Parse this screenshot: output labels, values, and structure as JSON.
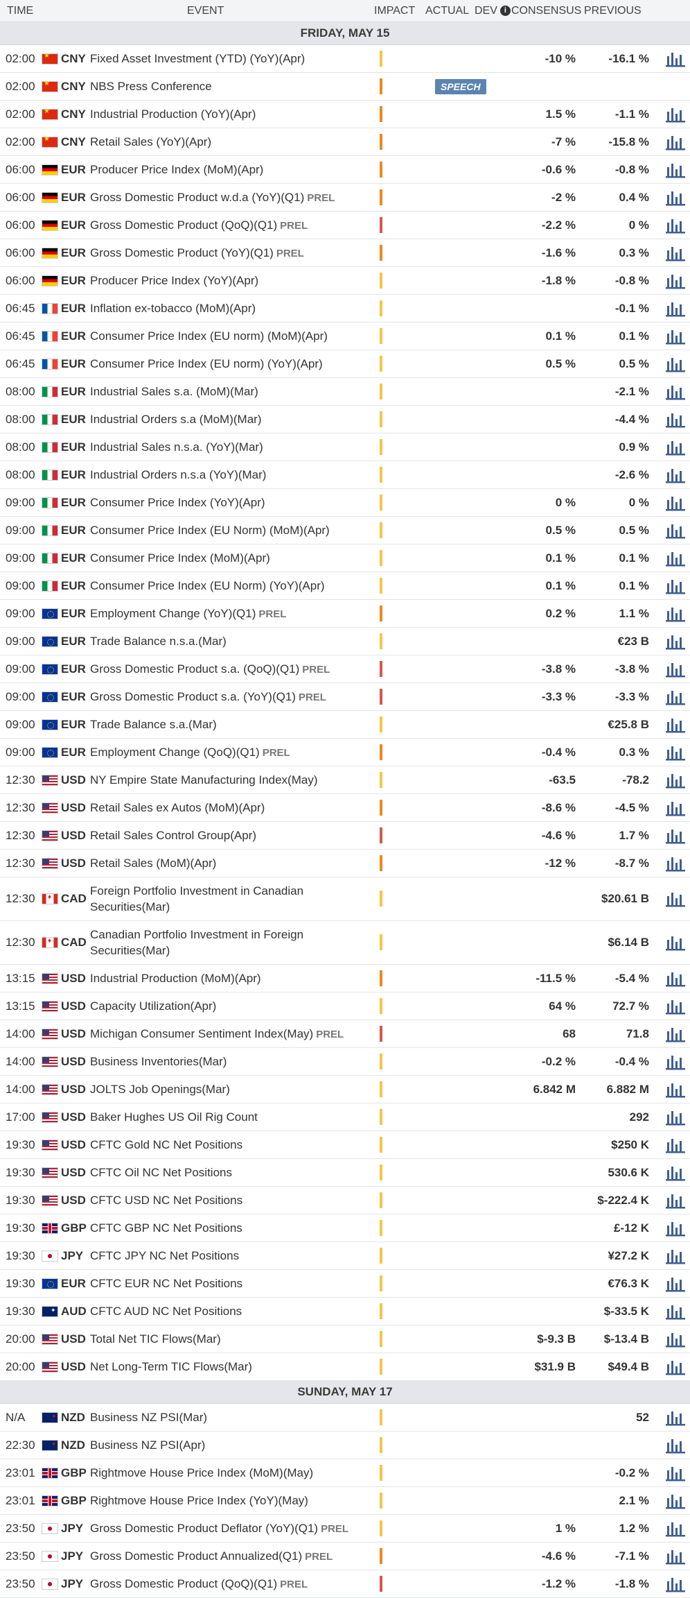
{
  "header": {
    "time": "TIME",
    "event": "EVENT",
    "impact": "IMPACT",
    "actual": "ACTUAL",
    "dev": "DEV",
    "dev_info_icon": "i",
    "consensus": "CONSENSUS",
    "previous": "PREVIOUS"
  },
  "days": [
    {
      "label": "FRIDAY, MAY 15",
      "events": [
        {
          "time": "02:00",
          "flag": "cn",
          "cur": "CNY",
          "name": "Fixed Asset Investment (YTD) (YoY)(Apr)",
          "prel": "",
          "impact": "low",
          "actual": "",
          "consensus": "-10 %",
          "previous": "-16.1 %",
          "chart": true
        },
        {
          "time": "02:00",
          "flag": "cn",
          "cur": "CNY",
          "name": "NBS Press Conference",
          "prel": "",
          "impact": "med",
          "actual": "",
          "speech": "SPEECH",
          "consensus": "",
          "previous": "",
          "chart": false
        },
        {
          "time": "02:00",
          "flag": "cn",
          "cur": "CNY",
          "name": "Industrial Production (YoY)(Apr)",
          "prel": "",
          "impact": "med",
          "actual": "",
          "consensus": "1.5 %",
          "previous": "-1.1 %",
          "chart": true
        },
        {
          "time": "02:00",
          "flag": "cn",
          "cur": "CNY",
          "name": "Retail Sales (YoY)(Apr)",
          "prel": "",
          "impact": "med",
          "actual": "",
          "consensus": "-7 %",
          "previous": "-15.8 %",
          "chart": true
        },
        {
          "time": "06:00",
          "flag": "de",
          "cur": "EUR",
          "name": "Producer Price Index (MoM)(Apr)",
          "prel": "",
          "impact": "med",
          "actual": "",
          "consensus": "-0.6 %",
          "previous": "-0.8 %",
          "chart": true
        },
        {
          "time": "06:00",
          "flag": "de",
          "cur": "EUR",
          "name": "Gross Domestic Product w.d.a (YoY)(Q1)",
          "prel": "PREL",
          "impact": "med",
          "actual": "",
          "consensus": "-2 %",
          "previous": "0.4 %",
          "chart": true
        },
        {
          "time": "06:00",
          "flag": "de",
          "cur": "EUR",
          "name": "Gross Domestic Product (QoQ)(Q1)",
          "prel": "PREL",
          "impact": "high",
          "actual": "",
          "consensus": "-2.2 %",
          "previous": "0 %",
          "chart": true
        },
        {
          "time": "06:00",
          "flag": "de",
          "cur": "EUR",
          "name": "Gross Domestic Product (YoY)(Q1)",
          "prel": "PREL",
          "impact": "med",
          "actual": "",
          "consensus": "-1.6 %",
          "previous": "0.3 %",
          "chart": true
        },
        {
          "time": "06:00",
          "flag": "de",
          "cur": "EUR",
          "name": "Producer Price Index (YoY)(Apr)",
          "prel": "",
          "impact": "low",
          "actual": "",
          "consensus": "-1.8 %",
          "previous": "-0.8 %",
          "chart": true
        },
        {
          "time": "06:45",
          "flag": "fr",
          "cur": "EUR",
          "name": "Inflation ex-tobacco (MoM)(Apr)",
          "prel": "",
          "impact": "low",
          "actual": "",
          "consensus": "",
          "previous": "-0.1 %",
          "chart": true
        },
        {
          "time": "06:45",
          "flag": "fr",
          "cur": "EUR",
          "name": "Consumer Price Index (EU norm) (MoM)(Apr)",
          "prel": "",
          "impact": "low",
          "actual": "",
          "consensus": "0.1 %",
          "previous": "0.1 %",
          "chart": true
        },
        {
          "time": "06:45",
          "flag": "fr",
          "cur": "EUR",
          "name": "Consumer Price Index (EU norm) (YoY)(Apr)",
          "prel": "",
          "impact": "low",
          "actual": "",
          "consensus": "0.5 %",
          "previous": "0.5 %",
          "chart": true
        },
        {
          "time": "08:00",
          "flag": "it",
          "cur": "EUR",
          "name": "Industrial Sales s.a. (MoM)(Mar)",
          "prel": "",
          "impact": "low",
          "actual": "",
          "consensus": "",
          "previous": "-2.1 %",
          "chart": true
        },
        {
          "time": "08:00",
          "flag": "it",
          "cur": "EUR",
          "name": "Industrial Orders s.a (MoM)(Mar)",
          "prel": "",
          "impact": "low",
          "actual": "",
          "consensus": "",
          "previous": "-4.4 %",
          "chart": true
        },
        {
          "time": "08:00",
          "flag": "it",
          "cur": "EUR",
          "name": "Industrial Sales n.s.a. (YoY)(Mar)",
          "prel": "",
          "impact": "low",
          "actual": "",
          "consensus": "",
          "previous": "0.9 %",
          "chart": true
        },
        {
          "time": "08:00",
          "flag": "it",
          "cur": "EUR",
          "name": "Industrial Orders n.s.a (YoY)(Mar)",
          "prel": "",
          "impact": "low",
          "actual": "",
          "consensus": "",
          "previous": "-2.6 %",
          "chart": true
        },
        {
          "time": "09:00",
          "flag": "it",
          "cur": "EUR",
          "name": "Consumer Price Index (YoY)(Apr)",
          "prel": "",
          "impact": "low",
          "actual": "",
          "consensus": "0 %",
          "previous": "0 %",
          "chart": true
        },
        {
          "time": "09:00",
          "flag": "it",
          "cur": "EUR",
          "name": "Consumer Price Index (EU Norm) (MoM)(Apr)",
          "prel": "",
          "impact": "low",
          "actual": "",
          "consensus": "0.5 %",
          "previous": "0.5 %",
          "chart": true
        },
        {
          "time": "09:00",
          "flag": "it",
          "cur": "EUR",
          "name": "Consumer Price Index (MoM)(Apr)",
          "prel": "",
          "impact": "low",
          "actual": "",
          "consensus": "0.1 %",
          "previous": "0.1 %",
          "chart": true
        },
        {
          "time": "09:00",
          "flag": "it",
          "cur": "EUR",
          "name": "Consumer Price Index (EU Norm) (YoY)(Apr)",
          "prel": "",
          "impact": "low",
          "actual": "",
          "consensus": "0.1 %",
          "previous": "0.1 %",
          "chart": true
        },
        {
          "time": "09:00",
          "flag": "eu",
          "cur": "EUR",
          "name": "Employment Change (YoY)(Q1)",
          "prel": "PREL",
          "impact": "med",
          "actual": "",
          "consensus": "0.2 %",
          "previous": "1.1 %",
          "chart": true
        },
        {
          "time": "09:00",
          "flag": "eu",
          "cur": "EUR",
          "name": "Trade Balance n.s.a.(Mar)",
          "prel": "",
          "impact": "low",
          "actual": "",
          "consensus": "",
          "previous": "€23 B",
          "chart": true
        },
        {
          "time": "09:00",
          "flag": "eu",
          "cur": "EUR",
          "name": "Gross Domestic Product s.a. (QoQ)(Q1)",
          "prel": "PREL",
          "impact": "high",
          "actual": "",
          "consensus": "-3.8 %",
          "previous": "-3.8 %",
          "chart": true
        },
        {
          "time": "09:00",
          "flag": "eu",
          "cur": "EUR",
          "name": "Gross Domestic Product s.a. (YoY)(Q1)",
          "prel": "PREL",
          "impact": "high",
          "actual": "",
          "consensus": "-3.3 %",
          "previous": "-3.3 %",
          "chart": true
        },
        {
          "time": "09:00",
          "flag": "eu",
          "cur": "EUR",
          "name": "Trade Balance s.a.(Mar)",
          "prel": "",
          "impact": "low",
          "actual": "",
          "consensus": "",
          "previous": "€25.8 B",
          "chart": true
        },
        {
          "time": "09:00",
          "flag": "eu",
          "cur": "EUR",
          "name": "Employment Change (QoQ)(Q1)",
          "prel": "PREL",
          "impact": "med",
          "actual": "",
          "consensus": "-0.4 %",
          "previous": "0.3 %",
          "chart": true
        },
        {
          "time": "12:30",
          "flag": "us",
          "cur": "USD",
          "name": "NY Empire State Manufacturing Index(May)",
          "prel": "",
          "impact": "low",
          "actual": "",
          "consensus": "-63.5",
          "previous": "-78.2",
          "chart": true
        },
        {
          "time": "12:30",
          "flag": "us",
          "cur": "USD",
          "name": "Retail Sales ex Autos (MoM)(Apr)",
          "prel": "",
          "impact": "med",
          "actual": "",
          "consensus": "-8.6 %",
          "previous": "-4.5 %",
          "chart": true
        },
        {
          "time": "12:30",
          "flag": "us",
          "cur": "USD",
          "name": "Retail Sales Control Group(Apr)",
          "prel": "",
          "impact": "high",
          "actual": "",
          "consensus": "-4.6 %",
          "previous": "1.7 %",
          "chart": true
        },
        {
          "time": "12:30",
          "flag": "us",
          "cur": "USD",
          "name": "Retail Sales (MoM)(Apr)",
          "prel": "",
          "impact": "med",
          "actual": "",
          "consensus": "-12 %",
          "previous": "-8.7 %",
          "chart": true
        },
        {
          "time": "12:30",
          "flag": "ca",
          "cur": "CAD",
          "name": "Foreign Portfolio Investment in Canadian Securities(Mar)",
          "prel": "",
          "impact": "low",
          "actual": "",
          "consensus": "",
          "previous": "$20.61 B",
          "chart": true,
          "tall": true
        },
        {
          "time": "12:30",
          "flag": "ca",
          "cur": "CAD",
          "name": "Canadian Portfolio Investment in Foreign Securities(Mar)",
          "prel": "",
          "impact": "low",
          "actual": "",
          "consensus": "",
          "previous": "$6.14 B",
          "chart": true,
          "tall": true
        },
        {
          "time": "13:15",
          "flag": "us",
          "cur": "USD",
          "name": "Industrial Production (MoM)(Apr)",
          "prel": "",
          "impact": "med",
          "actual": "",
          "consensus": "-11.5 %",
          "previous": "-5.4 %",
          "chart": true
        },
        {
          "time": "13:15",
          "flag": "us",
          "cur": "USD",
          "name": "Capacity Utilization(Apr)",
          "prel": "",
          "impact": "low",
          "actual": "",
          "consensus": "64 %",
          "previous": "72.7 %",
          "chart": true
        },
        {
          "time": "14:00",
          "flag": "us",
          "cur": "USD",
          "name": "Michigan Consumer Sentiment Index(May)",
          "prel": "PREL",
          "impact": "high",
          "actual": "",
          "consensus": "68",
          "previous": "71.8",
          "chart": true
        },
        {
          "time": "14:00",
          "flag": "us",
          "cur": "USD",
          "name": "Business Inventories(Mar)",
          "prel": "",
          "impact": "low",
          "actual": "",
          "consensus": "-0.2 %",
          "previous": "-0.4 %",
          "chart": true
        },
        {
          "time": "14:00",
          "flag": "us",
          "cur": "USD",
          "name": "JOLTS Job Openings(Mar)",
          "prel": "",
          "impact": "low",
          "actual": "",
          "consensus": "6.842 M",
          "previous": "6.882 M",
          "chart": true
        },
        {
          "time": "17:00",
          "flag": "us",
          "cur": "USD",
          "name": "Baker Hughes US Oil Rig Count",
          "prel": "",
          "impact": "low",
          "actual": "",
          "consensus": "",
          "previous": "292",
          "chart": true
        },
        {
          "time": "19:30",
          "flag": "us",
          "cur": "USD",
          "name": "CFTC Gold NC Net Positions",
          "prel": "",
          "impact": "low",
          "actual": "",
          "consensus": "",
          "previous": "$250 K",
          "chart": true
        },
        {
          "time": "19:30",
          "flag": "us",
          "cur": "USD",
          "name": "CFTC Oil NC Net Positions",
          "prel": "",
          "impact": "low",
          "actual": "",
          "consensus": "",
          "previous": "530.6 K",
          "chart": true
        },
        {
          "time": "19:30",
          "flag": "us",
          "cur": "USD",
          "name": "CFTC USD NC Net Positions",
          "prel": "",
          "impact": "low",
          "actual": "",
          "consensus": "",
          "previous": "$-222.4 K",
          "chart": true
        },
        {
          "time": "19:30",
          "flag": "gb",
          "cur": "GBP",
          "name": "CFTC GBP NC Net Positions",
          "prel": "",
          "impact": "low",
          "actual": "",
          "consensus": "",
          "previous": "£-12 K",
          "chart": true
        },
        {
          "time": "19:30",
          "flag": "jp",
          "cur": "JPY",
          "name": "CFTC JPY NC Net Positions",
          "prel": "",
          "impact": "low",
          "actual": "",
          "consensus": "",
          "previous": "¥27.2 K",
          "chart": true
        },
        {
          "time": "19:30",
          "flag": "eu",
          "cur": "EUR",
          "name": "CFTC EUR NC Net Positions",
          "prel": "",
          "impact": "low",
          "actual": "",
          "consensus": "",
          "previous": "€76.3 K",
          "chart": true
        },
        {
          "time": "19:30",
          "flag": "au",
          "cur": "AUD",
          "name": "CFTC AUD NC Net Positions",
          "prel": "",
          "impact": "low",
          "actual": "",
          "consensus": "",
          "previous": "$-33.5 K",
          "chart": true
        },
        {
          "time": "20:00",
          "flag": "us",
          "cur": "USD",
          "name": "Total Net TIC Flows(Mar)",
          "prel": "",
          "impact": "low",
          "actual": "",
          "consensus": "$-9.3 B",
          "previous": "$-13.4 B",
          "chart": true
        },
        {
          "time": "20:00",
          "flag": "us",
          "cur": "USD",
          "name": "Net Long-Term TIC Flows(Mar)",
          "prel": "",
          "impact": "low",
          "actual": "",
          "consensus": "$31.9 B",
          "previous": "$49.4 B",
          "chart": true
        }
      ]
    },
    {
      "label": "SUNDAY, MAY 17",
      "events": [
        {
          "time": "N/A",
          "flag": "nz",
          "cur": "NZD",
          "name": "Business NZ PSI(Mar)",
          "prel": "",
          "impact": "low",
          "actual": "",
          "consensus": "",
          "previous": "52",
          "chart": true
        },
        {
          "time": "22:30",
          "flag": "nz",
          "cur": "NZD",
          "name": "Business NZ PSI(Apr)",
          "prel": "",
          "impact": "low",
          "actual": "",
          "consensus": "",
          "previous": "",
          "chart": true
        },
        {
          "time": "23:01",
          "flag": "gb",
          "cur": "GBP",
          "name": "Rightmove House Price Index (MoM)(May)",
          "prel": "",
          "impact": "low",
          "actual": "",
          "consensus": "",
          "previous": "-0.2 %",
          "chart": true
        },
        {
          "time": "23:01",
          "flag": "gb",
          "cur": "GBP",
          "name": "Rightmove House Price Index (YoY)(May)",
          "prel": "",
          "impact": "low",
          "actual": "",
          "consensus": "",
          "previous": "2.1 %",
          "chart": true
        },
        {
          "time": "23:50",
          "flag": "jp",
          "cur": "JPY",
          "name": "Gross Domestic Product Deflator (YoY)(Q1)",
          "prel": "PREL",
          "impact": "low",
          "actual": "",
          "consensus": "1 %",
          "previous": "1.2 %",
          "chart": true
        },
        {
          "time": "23:50",
          "flag": "jp",
          "cur": "JPY",
          "name": "Gross Domestic Product Annualized(Q1)",
          "prel": "PREL",
          "impact": "med",
          "actual": "",
          "consensus": "-4.6 %",
          "previous": "-7.1 %",
          "chart": true
        },
        {
          "time": "23:50",
          "flag": "jp",
          "cur": "JPY",
          "name": "Gross Domestic Product (QoQ)(Q1)",
          "prel": "PREL",
          "impact": "high",
          "actual": "",
          "consensus": "-1.2 %",
          "previous": "-1.8 %",
          "chart": true
        }
      ]
    }
  ],
  "icons": {
    "chart": "bar-chart-icon",
    "info": "info-icon"
  },
  "colors": {
    "impact_low": "#f5c544",
    "impact_med": "#ea8a1d",
    "impact_high": "#d6574a",
    "chart_icon": "#3e5e8e",
    "speech_badge": "#5b84b1"
  }
}
